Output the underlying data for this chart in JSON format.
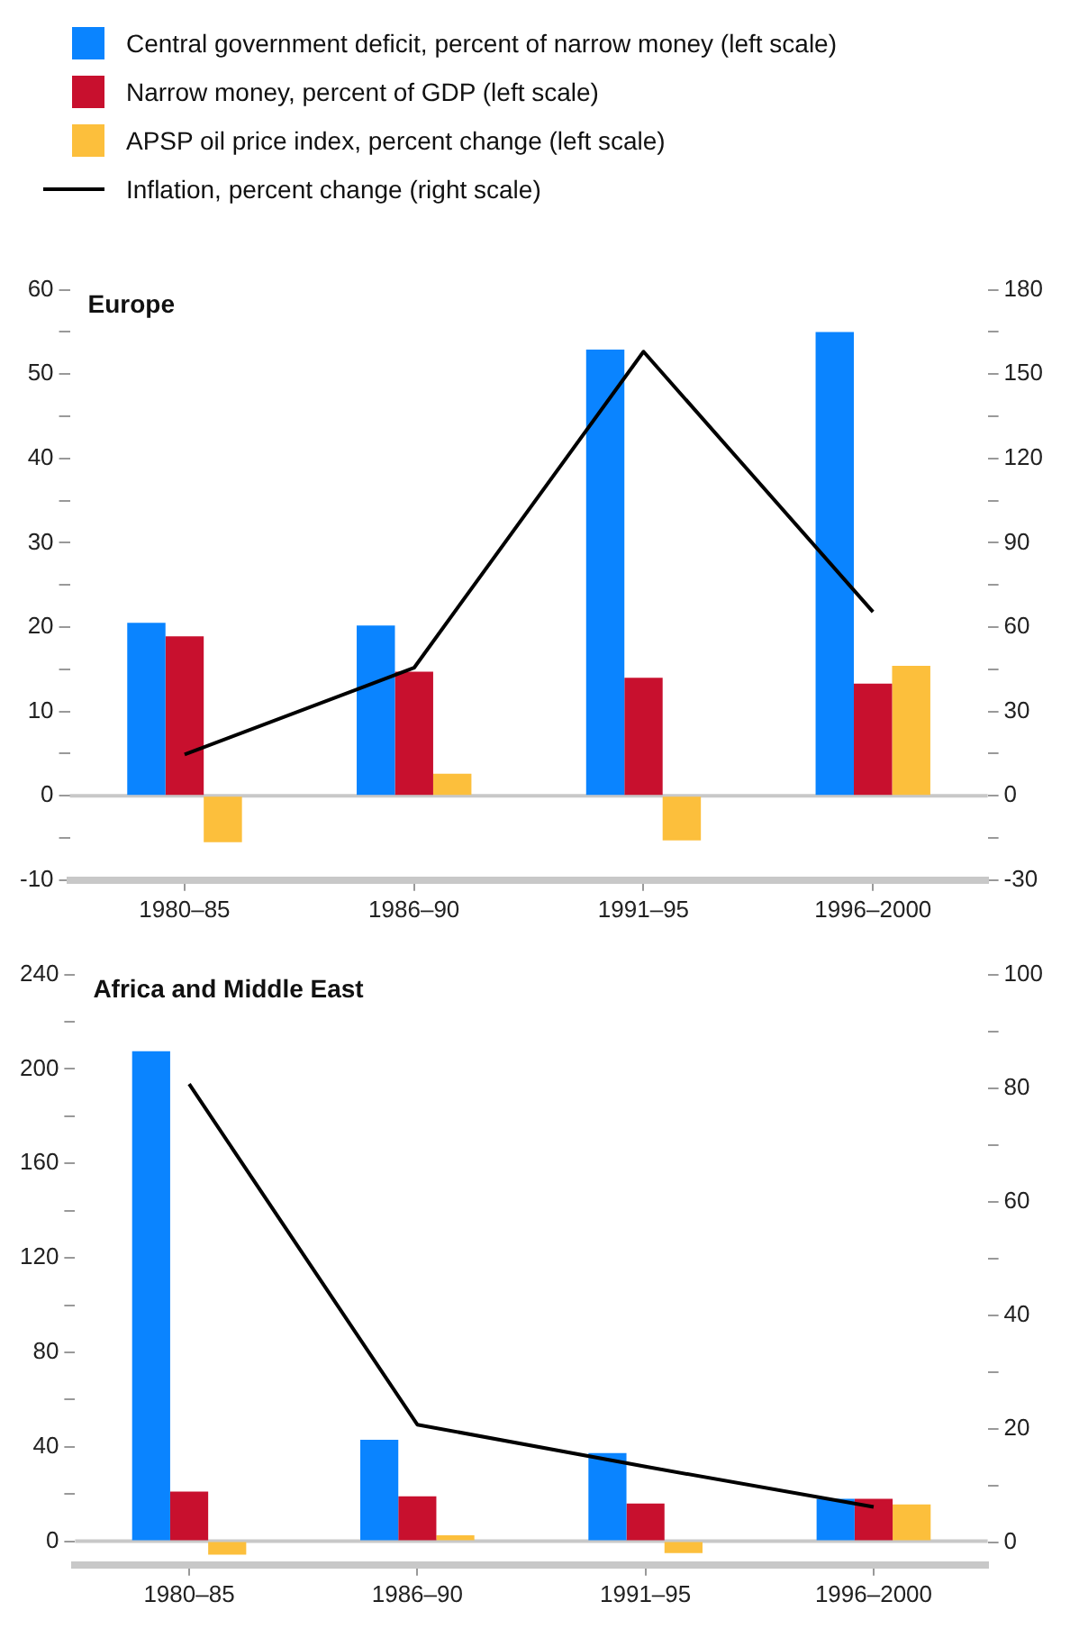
{
  "chart_data": [
    {
      "type": "bar",
      "title": "Europe",
      "categories": [
        "1980–85",
        "1986–90",
        "1991–95",
        "1996–2000"
      ],
      "series": [
        {
          "name": "Central government deficit, percent of narrow money (left scale)",
          "color": "#0a84ff",
          "values": [
            20.5,
            20.2,
            52.9,
            55
          ]
        },
        {
          "name": "Narrow money, percent of GDP (left scale)",
          "color": "#c8102e",
          "values": [
            18.9,
            14.7,
            14,
            13.3
          ]
        },
        {
          "name": "APSP oil price index, percent change (left scale)",
          "color": "#fcbf3c",
          "values": [
            -5.5,
            2.6,
            -5.3,
            15.4
          ]
        },
        {
          "name": "Inflation, percent change (right scale)",
          "type": "line",
          "axis": "y2",
          "color": "#000000",
          "values": [
            14.7,
            45.5,
            158,
            65.4
          ]
        }
      ],
      "ylim": [
        -10,
        60
      ],
      "yticks": [
        -10,
        {
          "value": -5,
          "label": null
        },
        0,
        {
          "value": 5,
          "label": null
        },
        10,
        {
          "value": 15,
          "label": null
        },
        20,
        {
          "value": 25,
          "label": null
        },
        30,
        {
          "value": 35,
          "label": null
        },
        40,
        {
          "value": 45,
          "label": null
        },
        50,
        {
          "value": 55,
          "label": null
        },
        60
      ],
      "y2lim": [
        -30,
        180
      ],
      "y2ticks": [
        -30,
        {
          "value": -15,
          "label": null
        },
        0,
        {
          "value": 15,
          "label": null
        },
        30,
        {
          "value": 45,
          "label": null
        },
        60,
        {
          "value": 75,
          "label": null
        },
        90,
        {
          "value": 105,
          "label": null
        },
        120,
        {
          "value": 135,
          "label": null
        },
        150,
        {
          "value": 165,
          "label": null
        },
        180
      ],
      "ref_lines": [
        {
          "axis": "y",
          "value": 0,
          "color": "#c8c8c8"
        }
      ],
      "grid": false,
      "marker": "none",
      "legend": "top"
    },
    {
      "type": "bar",
      "title": "Africa and Middle East",
      "categories": [
        "1980–85",
        "1986–90",
        "1991–95",
        "1996–2000"
      ],
      "series": [
        {
          "color": "#0a84ff",
          "values": [
            207.5,
            43,
            37.3,
            18
          ]
        },
        {
          "color": "#c8102e",
          "values": [
            21,
            19,
            16,
            18
          ]
        },
        {
          "color": "#fcbf3c",
          "values": [
            -5.7,
            2.5,
            -5,
            15.6
          ]
        },
        {
          "type": "line",
          "axis": "y2",
          "color": "#000000",
          "values": [
            80.7,
            20.7,
            13.3,
            6.2
          ]
        }
      ],
      "ylim": [
        -10,
        240
      ],
      "yticks": [
        0,
        {
          "value": 20,
          "label": null
        },
        40,
        {
          "value": 60,
          "label": null
        },
        80,
        {
          "value": 100,
          "label": null
        },
        120,
        {
          "value": 140,
          "label": null
        },
        160,
        {
          "value": 180,
          "label": null
        },
        200,
        {
          "value": 220,
          "label": null
        },
        240
      ],
      "y2lim": [
        -4,
        100
      ],
      "y2ticks": [
        0,
        {
          "value": 10,
          "label": null
        },
        20,
        {
          "value": 30,
          "label": null
        },
        40,
        {
          "value": 50,
          "label": null
        },
        60,
        {
          "value": 70,
          "label": null
        },
        80,
        {
          "value": 90,
          "label": null
        },
        100
      ],
      "ref_lines": [
        {
          "axis": "y",
          "value": 0,
          "color": "#c8c8c8"
        }
      ],
      "grid": false,
      "marker": "none"
    }
  ]
}
